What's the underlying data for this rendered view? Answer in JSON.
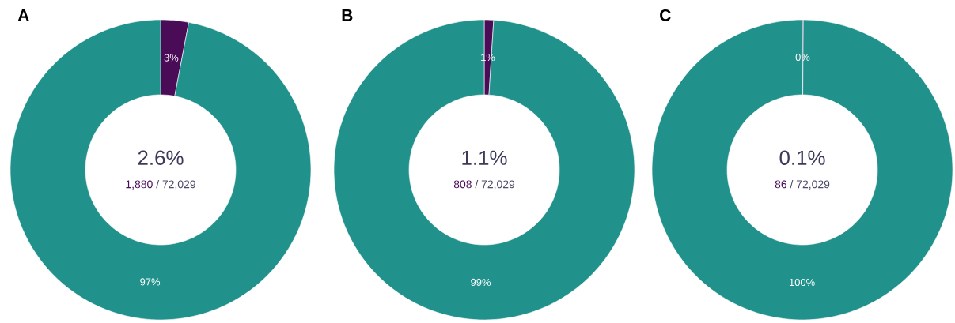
{
  "chart_data": [
    {
      "type": "donut",
      "title": "A",
      "categories": [
        null,
        null
      ],
      "values": [
        3,
        97
      ],
      "colors": [
        "#4a0b57",
        "#21918c"
      ],
      "value_labels": [
        "3%",
        "97%"
      ],
      "annotations": [
        "2.6%",
        "1,880",
        "/ 72,029"
      ]
    },
    {
      "type": "donut",
      "title": "B",
      "categories": [
        null,
        null
      ],
      "values": [
        1,
        99
      ],
      "colors": [
        "#4a0b57",
        "#21918c"
      ],
      "value_labels": [
        "1%",
        "99%"
      ],
      "annotations": [
        "1.1%",
        "808",
        "/ 72,029"
      ]
    },
    {
      "type": "donut",
      "title": "C",
      "categories": [
        null,
        null
      ],
      "values": [
        0.1,
        99.9
      ],
      "colors": [
        "#4a0b57",
        "#21918c"
      ],
      "value_labels": [
        "0%",
        "100%"
      ],
      "annotations": [
        "0.1%",
        "86",
        "/ 72,029"
      ]
    }
  ]
}
